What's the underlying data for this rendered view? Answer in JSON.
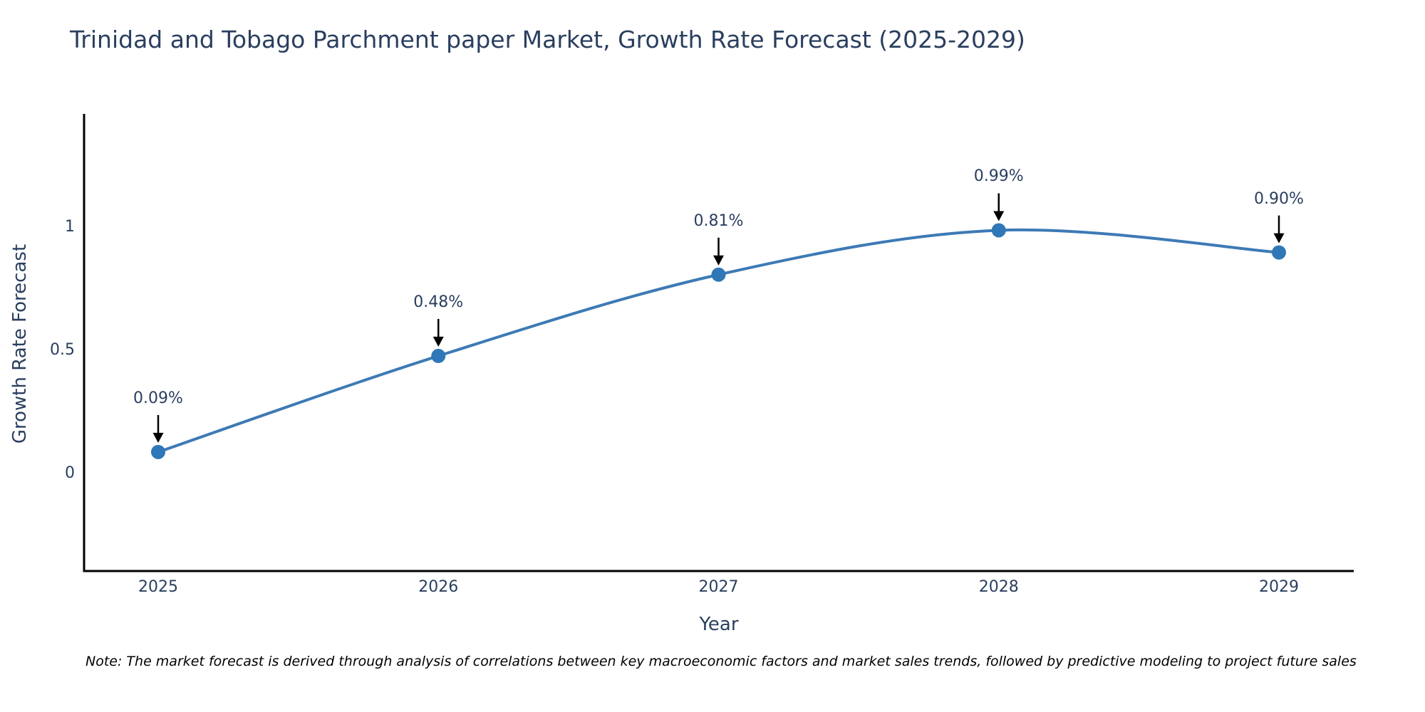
{
  "chart_data": {
    "type": "line",
    "title": "Trinidad and Tobago Parchment paper Market, Growth Rate Forecast (2025-2029)",
    "xlabel": "Year",
    "ylabel": "Growth Rate Forecast",
    "x": [
      2025,
      2026,
      2027,
      2028,
      2029
    ],
    "series": [
      {
        "name": "Growth Rate Forecast",
        "values": [
          0.09,
          0.48,
          0.81,
          0.99,
          0.9
        ]
      }
    ],
    "point_labels": [
      "0.09%",
      "0.48%",
      "0.81%",
      "0.99%",
      "0.90%"
    ],
    "ytick_values": [
      0,
      0.5,
      1
    ],
    "ytick_labels": [
      "0",
      "0.5",
      "1"
    ],
    "xtick_labels": [
      "2025",
      "2026",
      "2027",
      "2028",
      "2029"
    ],
    "ylim": [
      -0.39,
      1.46
    ],
    "line_shape": "spline",
    "grid": false,
    "legend": "none",
    "colors": {
      "line": "#3d7ab5",
      "marker": "#2f77b6",
      "axis": "#000000",
      "arrow": "#000000",
      "text": "#2a3f5f",
      "note": "#000000",
      "background": "#ffffff"
    },
    "note": "Note: The market forecast is derived through analysis of correlations between key macroeconomic factors and market sales trends, followed by predictive modeling to project future sales"
  }
}
